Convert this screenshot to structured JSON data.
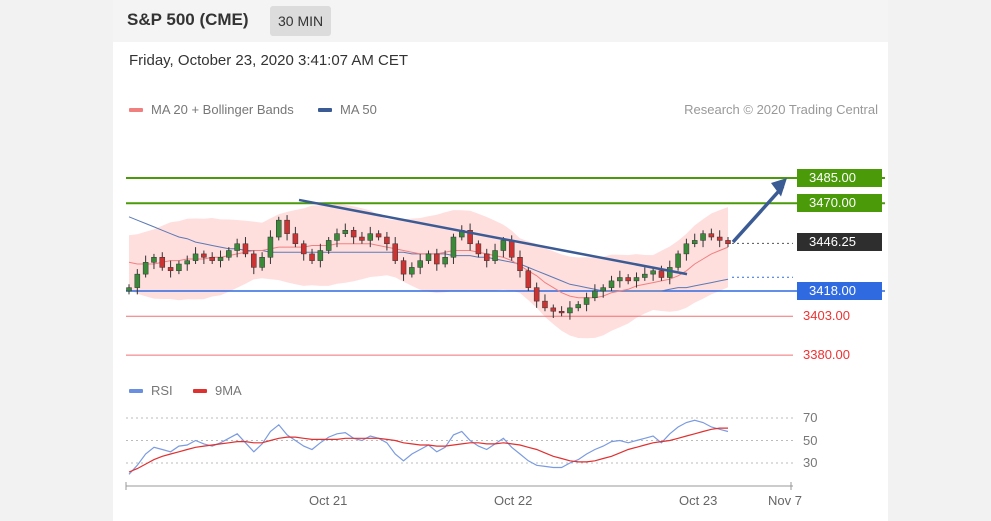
{
  "header": {
    "title": "S&P 500 (CME)",
    "interval": "30 MIN"
  },
  "timestamp": "Friday, October 23, 2020 3:41:07 AM CET",
  "legend": {
    "ma20": "MA 20 + Bollinger Bands",
    "ma50": "MA 50",
    "credit": "Research © 2020 Trading Central"
  },
  "colors": {
    "green": "#4a9a0a",
    "blue": "#2f6ae0",
    "red": "#e33333",
    "dark": "#2e2e2e",
    "navy": "#3b5b95",
    "band": "#ffd6d6"
  },
  "levels": {
    "r2": "3485.00",
    "r1": "3470.00",
    "last": "3446.25",
    "s1": "3418.00",
    "s2": "3403.00",
    "s3": "3380.00"
  },
  "rsi_legend": {
    "rsi": "RSI",
    "ma9": "9MA"
  },
  "rsi_levels": {
    "upper": "70",
    "mid": "50",
    "lower": "30"
  },
  "xticks": {
    "t1": "Oct 21",
    "t2": "Oct 22",
    "t3": "Oct 23",
    "t4": "Nov 7"
  },
  "chart_data": {
    "type": "candlestick",
    "ylim": [
      3375,
      3500
    ],
    "rsi_ylim": [
      10,
      80
    ],
    "close": [
      3420,
      3428,
      3435,
      3438,
      3432,
      3430,
      3434,
      3436,
      3440,
      3438,
      3436,
      3438,
      3442,
      3446,
      3440,
      3432,
      3438,
      3450,
      3460,
      3452,
      3446,
      3440,
      3436,
      3442,
      3448,
      3452,
      3454,
      3450,
      3448,
      3452,
      3450,
      3446,
      3436,
      3428,
      3432,
      3436,
      3440,
      3434,
      3438,
      3450,
      3454,
      3446,
      3440,
      3436,
      3442,
      3448,
      3438,
      3430,
      3420,
      3412,
      3408,
      3406,
      3405,
      3408,
      3410,
      3414,
      3418,
      3420,
      3424,
      3426,
      3424,
      3426,
      3428,
      3430,
      3426,
      3432,
      3440,
      3446,
      3448,
      3452,
      3450,
      3448,
      3446
    ],
    "ma20": [
      3435,
      3434,
      3434,
      3434,
      3435,
      3436,
      3436,
      3437,
      3437,
      3437,
      3438,
      3438,
      3439,
      3440,
      3441,
      3442,
      3442,
      3443,
      3444,
      3444,
      3444,
      3444,
      3445,
      3445,
      3445,
      3446,
      3446,
      3446,
      3446,
      3446,
      3445,
      3444,
      3443,
      3442,
      3441,
      3440,
      3440,
      3440,
      3441,
      3442,
      3442,
      3442,
      3441,
      3440,
      3439,
      3438,
      3436,
      3433,
      3430,
      3427,
      3423,
      3420,
      3417,
      3415,
      3414,
      3414,
      3414,
      3415,
      3417,
      3418,
      3419,
      3421,
      3422,
      3423,
      3424,
      3425,
      3427,
      3430,
      3434,
      3437,
      3440,
      3442,
      3444
    ],
    "ma50": [
      3462,
      3460,
      3458,
      3456,
      3454,
      3452,
      3450,
      3449,
      3447,
      3446,
      3445,
      3444,
      3443,
      3443,
      3442,
      3442,
      3442,
      3441,
      3441,
      3441,
      3441,
      3441,
      3441,
      3441,
      3441,
      3441,
      3441,
      3441,
      3441,
      3441,
      3441,
      3441,
      3441,
      3441,
      3440,
      3440,
      3440,
      3440,
      3440,
      3439,
      3439,
      3439,
      3438,
      3438,
      3437,
      3436,
      3435,
      3434,
      3432,
      3430,
      3428,
      3426,
      3424,
      3422,
      3421,
      3420,
      3419,
      3418,
      3418,
      3418,
      3418,
      3418,
      3418,
      3418,
      3418,
      3419,
      3420,
      3420,
      3421,
      3422,
      3423,
      3424,
      3425
    ],
    "rsi": [
      20,
      28,
      38,
      44,
      42,
      40,
      45,
      46,
      50,
      47,
      45,
      48,
      52,
      56,
      48,
      40,
      47,
      58,
      64,
      55,
      50,
      45,
      42,
      48,
      53,
      56,
      57,
      52,
      50,
      54,
      52,
      48,
      38,
      32,
      38,
      42,
      46,
      40,
      44,
      55,
      58,
      50,
      45,
      42,
      47,
      52,
      44,
      38,
      32,
      28,
      27,
      26,
      26,
      30,
      33,
      38,
      42,
      45,
      49,
      50,
      48,
      50,
      52,
      54,
      48,
      56,
      62,
      66,
      68,
      66,
      62,
      60,
      58
    ],
    "rsi_ma9": [
      22,
      25,
      29,
      33,
      36,
      38,
      40,
      42,
      44,
      45,
      46,
      47,
      48,
      49,
      49,
      48,
      48,
      50,
      52,
      53,
      53,
      52,
      51,
      51,
      51,
      51,
      52,
      52,
      52,
      52,
      52,
      51,
      50,
      48,
      47,
      46,
      46,
      45,
      45,
      46,
      47,
      48,
      48,
      47,
      47,
      48,
      47,
      46,
      44,
      42,
      39,
      36,
      34,
      32,
      31,
      31,
      32,
      34,
      36,
      39,
      42,
      44,
      46,
      48,
      49,
      50,
      52,
      54,
      56,
      58,
      60,
      61,
      61
    ],
    "annotations": {
      "trendline": "descending resistance",
      "forecast": "up arrow toward 3485.00"
    }
  }
}
